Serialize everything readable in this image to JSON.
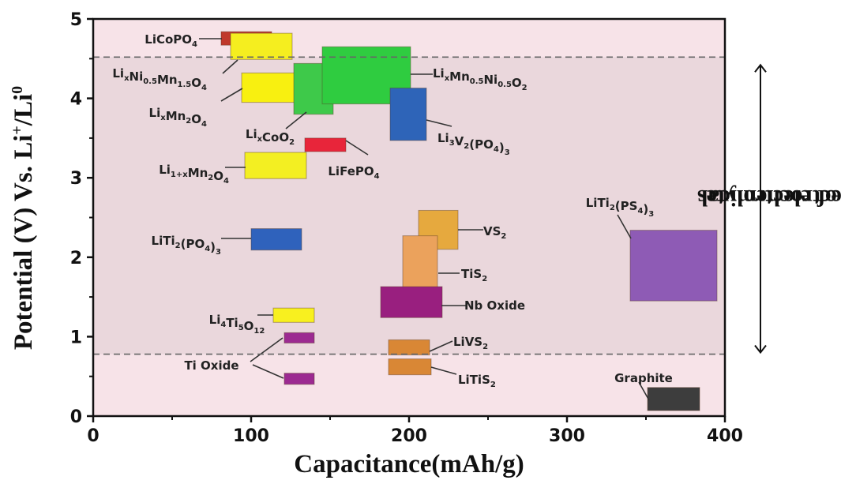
{
  "chart_data": {
    "type": "range-box",
    "title": "",
    "xlabel": "Capacitance(mAh/g)",
    "ylabel": "Potential (V) Vs. Li+/Li0",
    "ylabel_parts": {
      "main": "Potential (V) Vs. Li",
      "sup1": "+",
      "mid": "/Li",
      "sup2": "0"
    },
    "xlim": [
      0,
      400
    ],
    "ylim": [
      0,
      5
    ],
    "xticks": [
      0,
      100,
      200,
      300,
      400
    ],
    "yticks": [
      0,
      1,
      2,
      3,
      4,
      5
    ],
    "grid": false,
    "background_color": "#f7e3e8",
    "window_band_color": "#ead7dc",
    "electrolyte_window": {
      "label_line1": "Electrochemical",
      "label_line2": "window of electrolytes",
      "upper_V": 4.52,
      "lower_V": 0.78,
      "line_style": "dashed",
      "line_color": "#666666"
    },
    "materials": [
      {
        "name": "LiCoPO4",
        "label": "LiCoPO4",
        "x": [
          81,
          113
        ],
        "y": [
          4.67,
          4.84
        ],
        "color": "#c0392b",
        "group": "cathode"
      },
      {
        "name": "LixNi0.5Mn1.5O4",
        "label": "LixNi0.5Mn1.5O4",
        "x": [
          87,
          126
        ],
        "y": [
          4.49,
          4.82
        ],
        "color": "#f5ee1f",
        "group": "cathode"
      },
      {
        "name": "LixMn2O4",
        "label": "LixMn2O4",
        "x": [
          94,
          134
        ],
        "y": [
          3.95,
          4.32
        ],
        "color": "#f8f010",
        "group": "cathode"
      },
      {
        "name": "LixCoO2",
        "label": "LixCoO2",
        "x": [
          127,
          152
        ],
        "y": [
          3.8,
          4.44
        ],
        "color": "#3ec94a",
        "group": "cathode"
      },
      {
        "name": "LixMn0.5Ni0.5O2",
        "label": "LixMn0.5Ni0.5O2",
        "x": [
          145,
          201
        ],
        "y": [
          3.93,
          4.65
        ],
        "color": "#2fcc40",
        "group": "cathode"
      },
      {
        "name": "Li3V2(PO4)3",
        "label": "Li3V2(PO4)3",
        "x": [
          188,
          211
        ],
        "y": [
          3.47,
          4.13
        ],
        "color": "#2e64b8",
        "group": "cathode"
      },
      {
        "name": "LiFePO4",
        "label": "LiFePO4",
        "x": [
          134,
          160
        ],
        "y": [
          3.33,
          3.5
        ],
        "color": "#e8253a",
        "group": "cathode"
      },
      {
        "name": "Li1+xMn2O4",
        "label": "Li1+xMn2O4",
        "x": [
          96,
          135
        ],
        "y": [
          2.99,
          3.32
        ],
        "color": "#f3ef22",
        "group": "cathode"
      },
      {
        "name": "LiTi2(PO4)3",
        "label": "LiTi2(PO4)3",
        "x": [
          100,
          132
        ],
        "y": [
          2.09,
          2.36
        ],
        "color": "#2f62bc",
        "group": "anode"
      },
      {
        "name": "VS2",
        "label": "VS2",
        "x": [
          206,
          231
        ],
        "y": [
          2.1,
          2.59
        ],
        "color": "#e6a93e",
        "group": "anode"
      },
      {
        "name": "TiS2",
        "label": "TiS2",
        "x": [
          196,
          218
        ],
        "y": [
          1.61,
          2.27
        ],
        "color": "#eba25c",
        "group": "anode"
      },
      {
        "name": "Nb Oxide",
        "label": "Nb Oxide",
        "x": [
          182,
          221
        ],
        "y": [
          1.24,
          1.63
        ],
        "color": "#991f7f",
        "group": "anode"
      },
      {
        "name": "LiTiS2",
        "label": "LiTiS2",
        "x": [
          187,
          214
        ],
        "y": [
          0.52,
          0.72
        ],
        "color": "#d98735",
        "group": "anode"
      },
      {
        "name": "LiVS2",
        "label": "LiVS2",
        "x": [
          187,
          213
        ],
        "y": [
          0.77,
          0.96
        ],
        "color": "#d98735",
        "group": "anode"
      },
      {
        "name": "LiTi2(PS4)3",
        "label": "LiTi2(PS4)3",
        "x": [
          340,
          395
        ],
        "y": [
          1.45,
          2.34
        ],
        "color": "#8e5bb5",
        "group": "anode"
      },
      {
        "name": "Li4Ti5O12",
        "label": "Li4Ti5O12",
        "x": [
          114,
          140
        ],
        "y": [
          1.18,
          1.36
        ],
        "color": "#f8f01f",
        "group": "anode"
      },
      {
        "name": "Ti Oxide (upper)",
        "label": "Ti Oxide",
        "x": [
          121,
          140
        ],
        "y": [
          0.92,
          1.05
        ],
        "color": "#9c2a91",
        "group": "anode"
      },
      {
        "name": "Ti Oxide (lower)",
        "label": "Ti Oxide",
        "x": [
          121,
          140
        ],
        "y": [
          0.4,
          0.54
        ],
        "color": "#9c2a91",
        "group": "anode"
      },
      {
        "name": "Graphite",
        "label": "Graphite",
        "x": [
          351,
          384
        ],
        "y": [
          0.07,
          0.36
        ],
        "color": "#3d3d3d",
        "group": "anode"
      }
    ],
    "legend": null
  },
  "labels": {
    "y_axis": "Potential (V) Vs. Li⁺/Li⁰",
    "x_axis": "Capacitance(mAh/g)",
    "window_line1": "Electrochemical",
    "window_line2": "window of electrolytes"
  }
}
